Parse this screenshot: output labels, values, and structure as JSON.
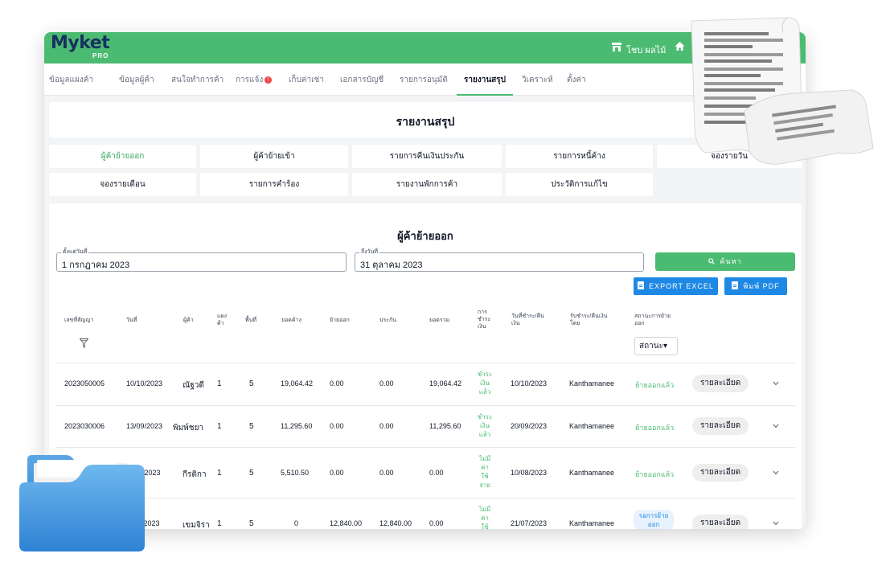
{
  "app": {
    "logo": "Myket",
    "logo_sub": "PRO",
    "shop_name": "โชบ ผลไม้",
    "user_short": "ธุ"
  },
  "nav": {
    "items": [
      {
        "label": "ข้อมูลแผงค้า"
      },
      {
        "label": "ข้อมูลผู้ค้า"
      },
      {
        "label": "สนใจทำการค้า"
      },
      {
        "label": "การแจ้ง"
      },
      {
        "label": "เก็บค่าเช่า"
      },
      {
        "label": "เอกสารบัญชี"
      },
      {
        "label": "รายการอนุมัติ"
      },
      {
        "label": "รายงานสรุป"
      },
      {
        "label": "วิเคราะห์"
      },
      {
        "label": "ตั้งค่า"
      }
    ],
    "notify_badge": "!",
    "active_index": 7
  },
  "page": {
    "title": "รายงานสรุป",
    "tiles": [
      {
        "label": "ผู้ค้าย้ายออก"
      },
      {
        "label": "ผู้ค้าย้ายเข้า"
      },
      {
        "label": "รายการคืนเงินประกัน"
      },
      {
        "label": "รายการหนี้ค้าง"
      },
      {
        "label": "จองรายวัน"
      },
      {
        "label": "จองรายเดือน"
      },
      {
        "label": "รายการคำร้อง"
      },
      {
        "label": "รายงานพักการค้า"
      },
      {
        "label": "ประวัติการแก้ไข"
      }
    ]
  },
  "report": {
    "title": "ผู้ค้าย้ายออก",
    "from_label": "ตั้งแต่วันที่",
    "from_value": "1 กรกฎาคม 2023",
    "to_label": "ถึงวันที่",
    "to_value": "31 ตุลาคม 2023",
    "search_label": "ค้นหา",
    "export_excel": "EXPORT EXCEL",
    "export_pdf": "พิมพ์ PDF",
    "status_filter": "สถานะ▾"
  },
  "table": {
    "headers": [
      "เลขที่สัญญา",
      "วันที่",
      "ผู้ค้า",
      "แผง\nค้า",
      "พื้นที่",
      "ยอดค้าง",
      "ย้ายออก",
      "ประกัน",
      "ยอดรวม",
      "การ\nชำระ\nเงิน",
      "วันที่ชำระ/คืน\nเงิน",
      "รับชำระ/คืนเงิน\nโดย",
      "สถานะการย้าย\nออก"
    ],
    "rows": [
      {
        "contract": "2023050005",
        "date": "10/10/2023",
        "vendor": "ณัฐวดี",
        "stall": "1",
        "area": "5",
        "owed": "19,064.42",
        "moveout": "0.00",
        "deposit": "0.00",
        "total": "19,064.42",
        "pay": "ชำระ\nเงิน\nแล้ว",
        "pay_date": "10/10/2023",
        "by": "Kanthamanee",
        "status": "ย้ายออกแล้ว",
        "status_type": "done",
        "detail": "รายละเอียด"
      },
      {
        "contract": "2023030006",
        "date": "13/09/2023",
        "vendor": "พิมพ์ชยา",
        "stall": "1",
        "area": "5",
        "owed": "11,295.60",
        "moveout": "0.00",
        "deposit": "0.00",
        "total": "11,295.60",
        "pay": "ชำระ\nเงิน\nแล้ว",
        "pay_date": "20/09/2023",
        "by": "Kanthamanee",
        "status": "ย้ายออกแล้ว",
        "status_type": "done",
        "detail": "รายละเอียด"
      },
      {
        "contract": "",
        "date": "3/2023",
        "vendor": "กีรติกา",
        "stall": "1",
        "area": "5",
        "owed": "5,510.50",
        "moveout": "0.00",
        "deposit": "0.00",
        "total": "0.00",
        "pay": "ไม่มี\nค่า\nใช้\nจ่าย",
        "pay_date": "10/08/2023",
        "by": "Kanthamanee",
        "status": "ย้ายออกแล้ว",
        "status_type": "done",
        "detail": "รายละเอียด"
      },
      {
        "contract": "",
        "date": "/2023",
        "vendor": "เขมจิรา",
        "stall": "1",
        "area": "5",
        "owed": "0",
        "moveout": "12,840.00",
        "deposit": "12,840.00",
        "total": "0.00",
        "pay": "ไม่มี\nค่า\nใช้",
        "pay_date": "21/07/2023",
        "by": "Kanthamanee",
        "status": "รอการย้าย\nออก",
        "status_type": "wait",
        "detail": "รายละเอียด"
      }
    ]
  },
  "colors": {
    "brand_green": "#4cbb72",
    "brand_navy": "#17305e",
    "export_blue": "#1e88e5"
  }
}
